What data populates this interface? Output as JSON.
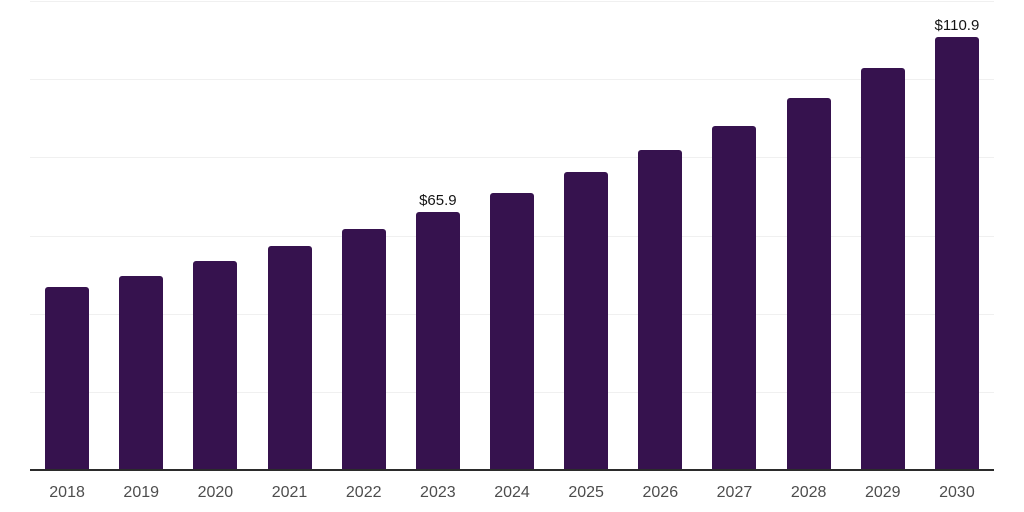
{
  "chart": {
    "background_color": "#ffffff",
    "bar_color": "#36124e",
    "grid_color": "#f0f0f0",
    "axis_line_color": "#2b2b2b",
    "value_label_color": "#141414",
    "tick_label_color": "#4d4d4d"
  },
  "chart_data": {
    "type": "bar",
    "title": "",
    "xlabel": "",
    "ylabel": "",
    "categories": [
      "2018",
      "2019",
      "2020",
      "2021",
      "2022",
      "2023",
      "2024",
      "2025",
      "2026",
      "2027",
      "2028",
      "2029",
      "2030"
    ],
    "values": [
      46.8,
      49.6,
      53.5,
      57.3,
      61.6,
      65.9,
      70.9,
      76.2,
      81.9,
      88.0,
      95.2,
      102.8,
      110.9
    ],
    "data_labels": {
      "2023": "$65.9",
      "2030": "$110.9"
    },
    "ylim": [
      0,
      120
    ],
    "ytick_step": 20,
    "grid": "horizontal",
    "legend_position": "none",
    "yaxis_tick_labels_visible": false
  }
}
